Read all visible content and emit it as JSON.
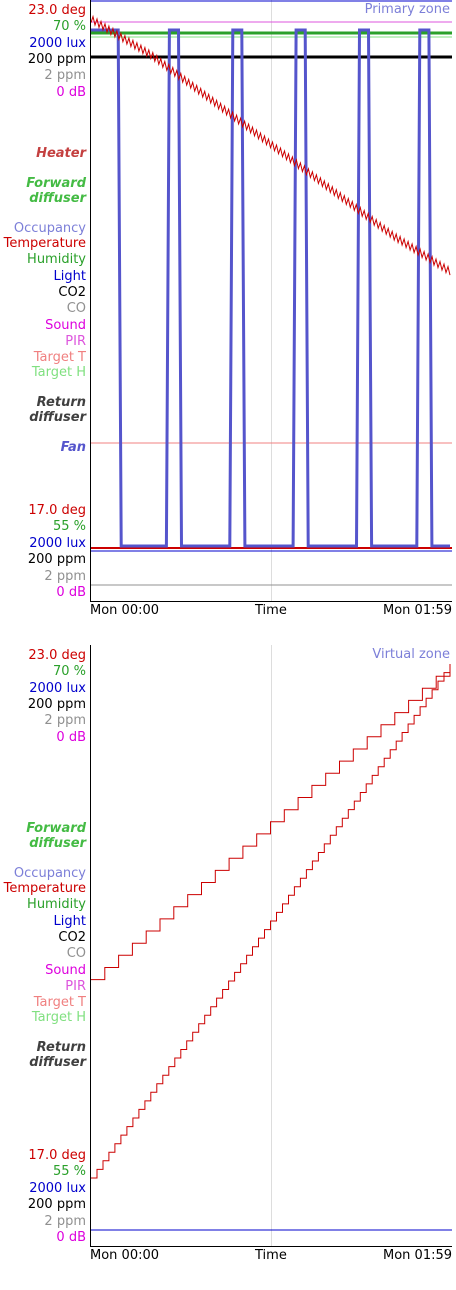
{
  "colors": {
    "temperature": "#cc0000",
    "humidity": "#2aa02a",
    "light": "#0000cc",
    "co2": "#000000",
    "co": "#909090",
    "sound": "#dd00dd",
    "pir": "#dd55dd",
    "occupancy": "#7c7fd8",
    "target_t": "#f08080",
    "target_h": "#80e080",
    "heater": "#c44040",
    "forward_diffuser": "#44bb44",
    "return_diffuser": "#404040",
    "fan": "#5555cc",
    "zone_title": "#7c7fd8",
    "grid": "#dddddd"
  },
  "chart_data": [
    {
      "type": "line",
      "title": "Primary zone",
      "xlabel": "Time",
      "x_range": [
        "Mon 00:00",
        "Mon 01:59"
      ],
      "x_ticks": [
        "Mon 00:00",
        "Time",
        "Mon 01:59"
      ],
      "axes": {
        "top": [
          "23.0 deg",
          "70 %",
          "2000 lux",
          "200 ppm",
          "2 ppm",
          "0 dB"
        ],
        "bottom": [
          "17.0 deg",
          "55 %",
          "2000 lux",
          "200 ppm",
          "2 ppm",
          "0 dB"
        ]
      },
      "legend": [
        "Heater",
        "Forward diffuser",
        "Occupancy",
        "Temperature",
        "Humidity",
        "Light",
        "CO2",
        "CO",
        "Sound",
        "PIR",
        "Target T",
        "Target H",
        "Return diffuser",
        "Fan"
      ],
      "temperature_range_deg": [
        17.0,
        23.0
      ],
      "humidity_range_pct": [
        55,
        70
      ],
      "series": [
        {
          "name": "Temperature",
          "x_min": [
            0,
            20,
            40,
            60,
            80,
            100,
            119
          ],
          "values": [
            22.9,
            22.5,
            22.0,
            21.5,
            21.0,
            20.5,
            20.1
          ]
        },
        {
          "name": "Target T",
          "x_min": [
            0,
            119
          ],
          "values": [
            22.8,
            22.8
          ]
        },
        {
          "name": "Humidity",
          "x_min": [
            0,
            119
          ],
          "values": [
            69.2,
            69.2
          ]
        },
        {
          "name": "Target H",
          "x_min": [
            0,
            119
          ],
          "values": [
            68.8,
            68.8
          ]
        },
        {
          "name": "CO2",
          "x_min": [
            0,
            119
          ],
          "values": [
            200,
            200
          ]
        },
        {
          "name": "Fan",
          "note_cycle_minutes": 20,
          "x_min": [
            0,
            9,
            10,
            25,
            26,
            29,
            30,
            46,
            47,
            50,
            51,
            67,
            68,
            71,
            72,
            88,
            89,
            92,
            93,
            108,
            109,
            112,
            113,
            119
          ],
          "values": [
            1,
            1,
            0,
            0,
            1,
            1,
            0,
            0,
            1,
            1,
            0,
            0,
            1,
            1,
            0,
            0,
            1,
            1,
            0,
            0,
            1,
            1,
            0,
            0
          ]
        }
      ]
    },
    {
      "type": "line",
      "title": "Virtual zone",
      "xlabel": "Time",
      "x_range": [
        "Mon 00:00",
        "Mon 01:59"
      ],
      "x_ticks": [
        "Mon 00:00",
        "Time",
        "Mon 01:59"
      ],
      "axes": {
        "top": [
          "23.0 deg",
          "70 %",
          "2000 lux",
          "200 ppm",
          "2 ppm",
          "0 dB"
        ],
        "bottom": [
          "17.0 deg",
          "55 %",
          "2000 lux",
          "200 ppm",
          "2 ppm",
          "0 dB"
        ]
      },
      "legend": [
        "Forward diffuser",
        "Occupancy",
        "Temperature",
        "Humidity",
        "Light",
        "CO2",
        "CO",
        "Sound",
        "PIR",
        "Target T",
        "Target H",
        "Return diffuser"
      ],
      "series": [
        {
          "name": "Temperature",
          "x_min": [
            0,
            119
          ],
          "values": [
            17.2,
            22.9
          ]
        },
        {
          "name": "Temperature",
          "x_min": [
            0,
            119
          ],
          "values": [
            19.4,
            22.9
          ]
        },
        {
          "name": "Light",
          "x_min": [
            0,
            119
          ],
          "values": [
            0,
            0
          ]
        }
      ]
    }
  ],
  "primary": {
    "zone_title": "Primary zone",
    "top_labels": [
      "23.0 deg",
      "70 %",
      "2000 lux",
      "200 ppm",
      "2 ppm",
      "0 dB"
    ],
    "bottom_labels": [
      "17.0 deg",
      "55 %",
      "2000 lux",
      "200 ppm",
      "2 ppm",
      "0 dB"
    ],
    "legend": {
      "heater": "Heater",
      "forward_diffuser_1": "Forward",
      "forward_diffuser_2": "diffuser",
      "occupancy": "Occupancy",
      "temperature": "Temperature",
      "humidity": "Humidity",
      "light": "Light",
      "co2": "CO2",
      "co": "CO",
      "sound": "Sound",
      "pir": "PIR",
      "target_t": "Target T",
      "target_h": "Target H",
      "return_diffuser_1": "Return",
      "return_diffuser_2": "diffuser",
      "fan": "Fan"
    },
    "x_ticks": {
      "start": "Mon 00:00",
      "mid": "Time",
      "end": "Mon 01:59"
    }
  },
  "virtual": {
    "zone_title": "Virtual zone",
    "top_labels": [
      "23.0 deg",
      "70 %",
      "2000 lux",
      "200 ppm",
      "2 ppm",
      "0 dB"
    ],
    "bottom_labels": [
      "17.0 deg",
      "55 %",
      "2000 lux",
      "200 ppm",
      "2 ppm",
      "0 dB"
    ],
    "legend": {
      "forward_diffuser_1": "Forward",
      "forward_diffuser_2": "diffuser",
      "occupancy": "Occupancy",
      "temperature": "Temperature",
      "humidity": "Humidity",
      "light": "Light",
      "co2": "CO2",
      "co": "CO",
      "sound": "Sound",
      "pir": "PIR",
      "target_t": "Target T",
      "target_h": "Target H",
      "return_diffuser_1": "Return",
      "return_diffuser_2": "diffuser"
    },
    "x_ticks": {
      "start": "Mon 00:00",
      "mid": "Time",
      "end": "Mon 01:59"
    }
  }
}
